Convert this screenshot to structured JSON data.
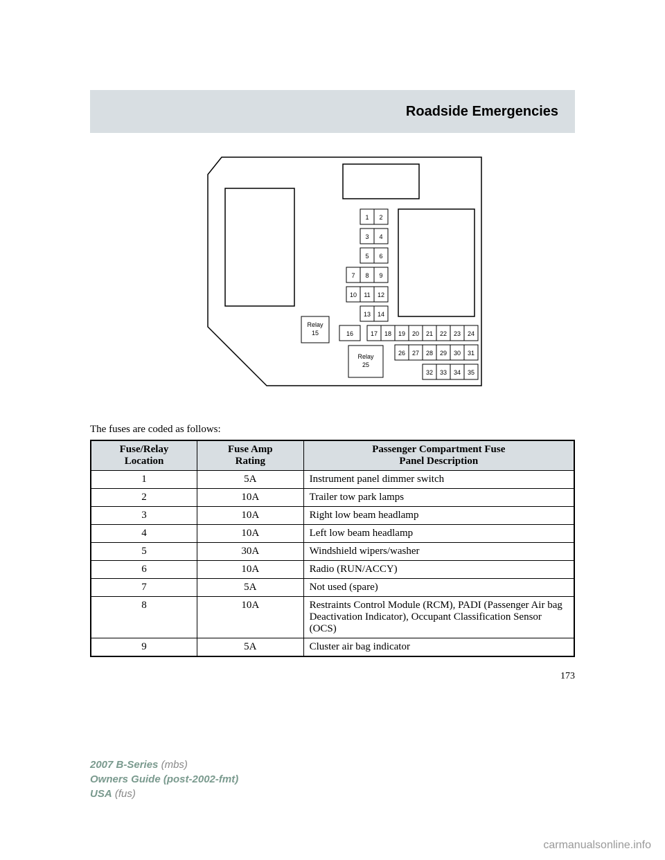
{
  "header": {
    "title": "Roadside Emergencies"
  },
  "intro": "The fuses are coded as follows:",
  "table": {
    "headers": {
      "col1_line1": "Fuse/Relay",
      "col1_line2": "Location",
      "col2_line1": "Fuse Amp",
      "col2_line2": "Rating",
      "col3_line1": "Passenger Compartment Fuse",
      "col3_line2": "Panel Description"
    },
    "rows": [
      {
        "loc": "1",
        "amp": "5A",
        "desc": "Instrument panel dimmer switch"
      },
      {
        "loc": "2",
        "amp": "10A",
        "desc": "Trailer tow park lamps"
      },
      {
        "loc": "3",
        "amp": "10A",
        "desc": "Right low beam headlamp"
      },
      {
        "loc": "4",
        "amp": "10A",
        "desc": "Left low beam headlamp"
      },
      {
        "loc": "5",
        "amp": "30A",
        "desc": "Windshield wipers/washer"
      },
      {
        "loc": "6",
        "amp": "10A",
        "desc": "Radio (RUN/ACCY)"
      },
      {
        "loc": "7",
        "amp": "5A",
        "desc": "Not used (spare)"
      },
      {
        "loc": "8",
        "amp": "10A",
        "desc": "Restraints Control Module (RCM), PADI (Passenger Air bag Deactivation Indicator), Occupant Classification Sensor (OCS)"
      },
      {
        "loc": "9",
        "amp": "5A",
        "desc": "Cluster air bag indicator"
      }
    ]
  },
  "page_number": "173",
  "footer": {
    "model": "2007 B-Series",
    "model_suffix": "(mbs)",
    "guide": "Owners Guide (post-2002-fmt)",
    "usa": "USA",
    "usa_suffix": "(fus)"
  },
  "watermark": "carmanualsonline.info",
  "diagram": {
    "relay15": "Relay\n15",
    "relay25": "Relay\n25",
    "outline_stroke": "#000000",
    "cell_stroke": "#000000",
    "font_size": 9
  }
}
